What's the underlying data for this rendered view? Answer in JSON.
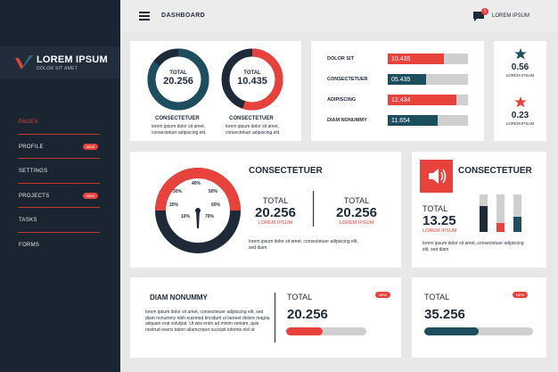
{
  "brand": {
    "title": "LOREM IPSUM",
    "subtitle": "DOLOR SIT AMET"
  },
  "topbar": {
    "title": "DASHBOARD",
    "notification_count": "1",
    "user": "LOREM IPSUM"
  },
  "sidebar": {
    "items": [
      {
        "label": "PAGES",
        "active": true
      },
      {
        "label": "PROFILE",
        "badge": "NEW"
      },
      {
        "label": "SETTINGS"
      },
      {
        "label": "PROJECTS",
        "badge": "NEW"
      },
      {
        "label": "TASKS"
      },
      {
        "label": "FORMS"
      }
    ]
  },
  "donuts": [
    {
      "total_label": "TOTAL",
      "value": "20.256",
      "title": "CONSECTETUER",
      "text": "lorem ipsum dolor sit amet, consectetuer adipiscing elit.",
      "progress": 0.85
    },
    {
      "total_label": "TOTAL",
      "value": "10.435",
      "title": "CONSECTETUER",
      "text": "lorem ipsum dolor sit amet, consectetuer adipiscing elit.",
      "progress": 0.55
    }
  ],
  "bars": [
    {
      "label": "DOLOR SIT",
      "value": "10.435",
      "fraction": 0.7,
      "color": "#e8423c"
    },
    {
      "label": "CONSECTETUER",
      "value": "05.435",
      "fraction": 0.48,
      "color": "#1d4e5e"
    },
    {
      "label": "ADIPISCING",
      "value": "12.434",
      "fraction": 0.85,
      "color": "#e8423c"
    },
    {
      "label": "DIAM NONUMMY",
      "value": "11.654",
      "fraction": 0.62,
      "color": "#1d4e5e"
    }
  ],
  "ratings": [
    {
      "value": "0.56",
      "text": "LOREM IPSUM",
      "color": "#1d4e5e"
    },
    {
      "value": "0.23",
      "text": "LOREM IPSUM",
      "color": "#e8423c"
    }
  ],
  "gauge": {
    "title": "CONSECTETUER",
    "ticks": [
      "10%",
      "20%",
      "30%",
      "40%",
      "50%",
      "60%",
      "70%"
    ],
    "totals": [
      {
        "label": "TOTAL",
        "value": "20.256",
        "sub": "LOREM IPSUM"
      },
      {
        "label": "TOTAL",
        "value": "20.256",
        "sub": "LOREM IPSUM"
      }
    ],
    "text": "lorem ipsum dolor sit amet, consectetuer adipiscing elit, sed diam"
  },
  "audio": {
    "title": "CONSECTETUER",
    "total_label": "TOTAL",
    "value": "13.25",
    "sub": "LOREM IPSUM",
    "text": "lorem ipsum dolor sit amet, consectetuer adipiscing elit, sed diam",
    "levels": [
      {
        "fraction": 0.7,
        "color": "#1f2a38"
      },
      {
        "fraction": 0.25,
        "color": "#e8423c"
      },
      {
        "fraction": 0.4,
        "color": "#1d4e5e"
      }
    ]
  },
  "bottom_text": {
    "title": "DIAM NONUMMY",
    "text": "lorem ipsum dolor sit amet, consectetuer adipiscing elit, sed diam nonummy nibh euismod tincidunt ut laoreet dolore magna aliquam erat volutpat. Ut wisi enim ad minim veniam, quis nostrud exerci tation ullamcorper suscipit lobortis nisl ut"
  },
  "stat_a": {
    "label": "TOTAL",
    "badge": "NEW",
    "value": "20.256",
    "fraction": 0.45,
    "color": "#e8423c"
  },
  "stat_b": {
    "label": "TOTAL",
    "badge": "NEW",
    "value": "35.256",
    "fraction": 0.5,
    "color": "#1d4e5e"
  }
}
